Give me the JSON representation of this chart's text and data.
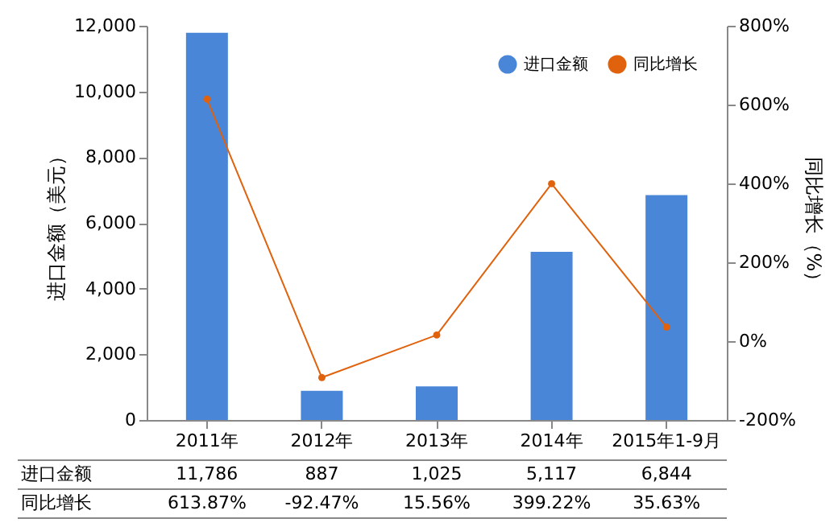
{
  "chart_data": {
    "type": "bar",
    "categories": [
      "2011年",
      "2012年",
      "2013年",
      "2014年",
      "2015年1-9月"
    ],
    "ylabel": "进口金额（美元）",
    "y2label": "同比增长（%）",
    "ylim": [
      0,
      12000
    ],
    "yticks": [
      {
        "value": 0,
        "label": "0"
      },
      {
        "value": 2000,
        "label": "2,000"
      },
      {
        "value": 4000,
        "label": "4,000"
      },
      {
        "value": 6000,
        "label": "6,000"
      },
      {
        "value": 8000,
        "label": "8,000"
      },
      {
        "value": 10000,
        "label": "10,000"
      },
      {
        "value": 12000,
        "label": "12,000"
      }
    ],
    "y2lim": [
      -200,
      800
    ],
    "y2ticks": [
      {
        "value": -200,
        "label": "-200%"
      },
      {
        "value": 0,
        "label": "0%"
      },
      {
        "value": 200,
        "label": "200%"
      },
      {
        "value": 400,
        "label": "400%"
      },
      {
        "value": 600,
        "label": "600%"
      },
      {
        "value": 800,
        "label": "800%"
      }
    ],
    "series": [
      {
        "name": "进口金额",
        "color": "#4a86d8",
        "values": [
          11786,
          887,
          1025,
          5117,
          6844
        ],
        "value_labels": [
          "11,786",
          "887",
          "1,025",
          "5,117",
          "6,844"
        ]
      },
      {
        "name": "同比增长",
        "type": "line",
        "axis": "y2",
        "color": "#e0620d",
        "marker": "circle",
        "values": [
          613.87,
          -92.47,
          15.56,
          399.22,
          35.63
        ],
        "value_labels": [
          "613.87%",
          "-92.47%",
          "15.56%",
          "399.22%",
          "35.63%"
        ]
      }
    ],
    "data_labels": true,
    "legend": "top right",
    "grid": false
  }
}
